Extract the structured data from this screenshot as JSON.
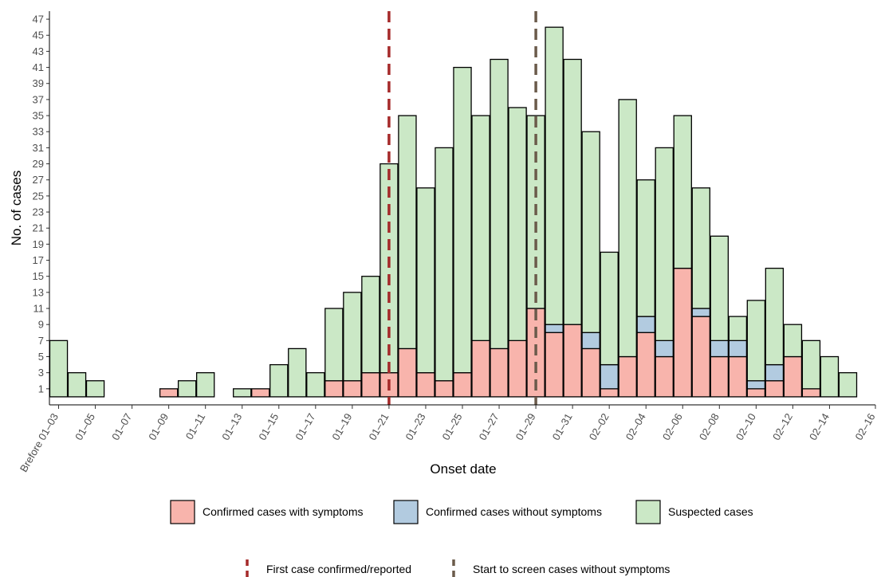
{
  "chart_data": {
    "type": "bar",
    "stacked": true,
    "xlabel": "Onset date",
    "ylabel": "No. of cases",
    "ylim": [
      -1,
      48
    ],
    "y_ticks": [
      1,
      3,
      5,
      7,
      9,
      11,
      13,
      15,
      17,
      19,
      21,
      23,
      25,
      27,
      29,
      31,
      33,
      35,
      37,
      39,
      41,
      43,
      45,
      47
    ],
    "grid": false,
    "legend_position": "bottom",
    "x_tick_labels": [
      "Brefore 01–03",
      "01–05",
      "01–07",
      "01–09",
      "01–11",
      "01–13",
      "01–15",
      "01–17",
      "01–19",
      "01–21",
      "01–23",
      "01–25",
      "01–27",
      "01–29",
      "01–31",
      "02–02",
      "02–04",
      "02–06",
      "02–08",
      "02–10",
      "02–12",
      "02–14",
      "02–16"
    ],
    "categories": [
      "Brefore 01-03",
      "01-04",
      "01-05",
      "01-06",
      "01-07",
      "01-08",
      "01-09",
      "01-10",
      "01-11",
      "01-12",
      "01-13",
      "01-14",
      "01-15",
      "01-16",
      "01-17",
      "01-18",
      "01-19",
      "01-20",
      "01-21",
      "01-22",
      "01-23",
      "01-24",
      "01-25",
      "01-26",
      "01-27",
      "01-28",
      "01-29",
      "01-30",
      "01-31",
      "02-01",
      "02-02",
      "02-03",
      "02-04",
      "02-05",
      "02-06",
      "02-07",
      "02-08",
      "02-09",
      "02-10",
      "02-11",
      "02-12",
      "02-13",
      "02-14",
      "02-15",
      "02-16"
    ],
    "series": [
      {
        "name": "Confirmed cases with symptoms",
        "color": "#f8b4ac",
        "values": [
          0,
          0,
          0,
          0,
          0,
          0,
          1,
          0,
          0,
          0,
          0,
          1,
          0,
          0,
          0,
          2,
          2,
          3,
          3,
          6,
          3,
          2,
          3,
          7,
          6,
          7,
          11,
          8,
          9,
          6,
          1,
          5,
          8,
          5,
          16,
          10,
          5,
          5,
          1,
          2,
          5,
          1,
          0,
          0,
          0
        ]
      },
      {
        "name": "Confirmed cases without symptoms",
        "color": "#b2cbe0",
        "values": [
          0,
          0,
          0,
          0,
          0,
          0,
          0,
          0,
          0,
          0,
          0,
          0,
          0,
          0,
          0,
          0,
          0,
          0,
          0,
          0,
          0,
          0,
          0,
          0,
          0,
          0,
          0,
          1,
          0,
          2,
          3,
          0,
          2,
          2,
          0,
          1,
          2,
          2,
          1,
          2,
          0,
          0,
          0,
          0,
          0
        ]
      },
      {
        "name": "Suspected cases",
        "color": "#cbe8c6",
        "values": [
          7,
          3,
          2,
          0,
          0,
          0,
          0,
          2,
          3,
          0,
          1,
          0,
          4,
          6,
          3,
          9,
          11,
          12,
          26,
          29,
          23,
          29,
          38,
          28,
          36,
          29,
          24,
          37,
          33,
          25,
          14,
          32,
          17,
          24,
          19,
          15,
          13,
          3,
          10,
          12,
          4,
          6,
          5,
          3,
          0
        ]
      }
    ],
    "reference_lines": [
      {
        "name": "First case confirmed/reported",
        "x_index": 18,
        "color": "#a52a2a"
      },
      {
        "name": "Start to screen cases without symptoms",
        "x_index": 26,
        "color": "#6b5b4b"
      }
    ]
  }
}
